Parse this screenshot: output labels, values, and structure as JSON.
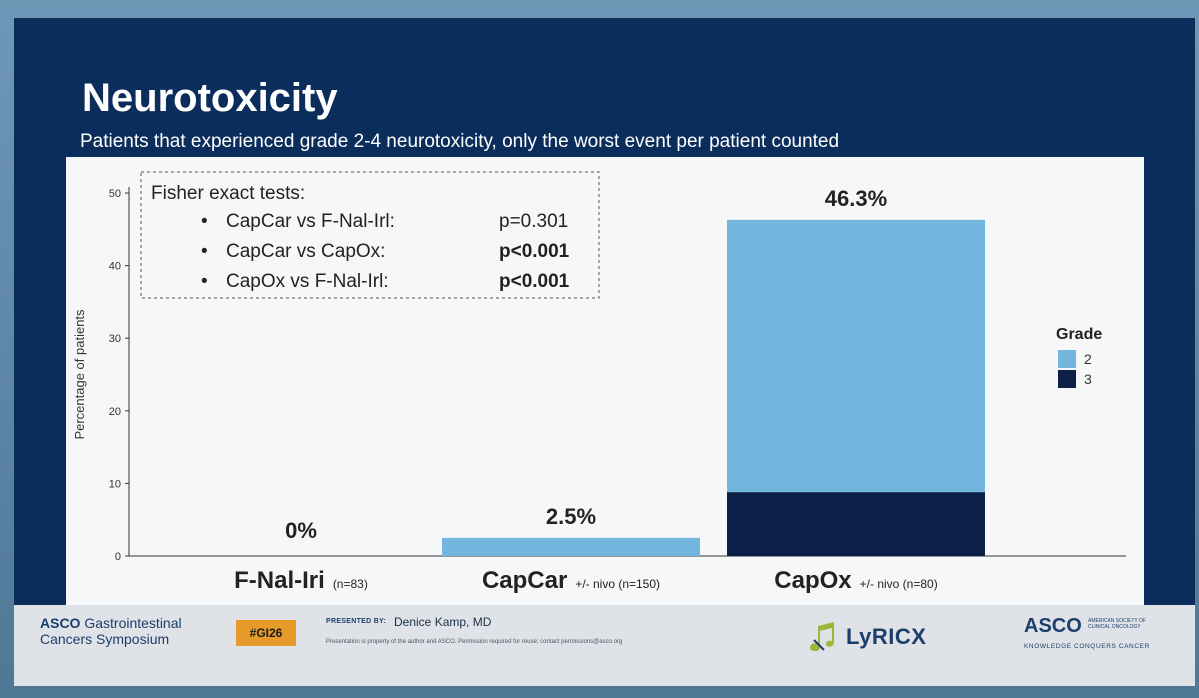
{
  "slide": {
    "title": "Neurotoxicity",
    "subtitle": "Patients that experienced grade 2-4 neurotoxicity, only the worst event per patient counted"
  },
  "chart_data": {
    "type": "bar",
    "stacked": true,
    "title": "",
    "ylabel": "Percentage of patients",
    "ylim": [
      0,
      50
    ],
    "yticks": [
      0,
      10,
      20,
      30,
      40,
      50
    ],
    "grid": false,
    "categories": [
      {
        "name": "F-Nal-Iri",
        "note": "(n=83)"
      },
      {
        "name": "CapCar",
        "note": "+/- nivo (n=150)"
      },
      {
        "name": "CapOx",
        "note": "+/- nivo (n=80)"
      }
    ],
    "series": [
      {
        "name": "2",
        "color": "#72b6dd",
        "values": [
          0,
          2.5,
          37.5
        ]
      },
      {
        "name": "3",
        "color": "#0c1f46",
        "values": [
          0,
          0,
          8.8
        ]
      }
    ],
    "bar_labels": [
      "0%",
      "2.5%",
      "46.3%"
    ],
    "legend": {
      "title": "Grade",
      "position": "right"
    },
    "annotation": {
      "heading": "Fisher exact tests:",
      "rows": [
        {
          "comparison": "CapCar  vs F-Nal-Irl:",
          "p": "p=0.301",
          "bold": false
        },
        {
          "comparison": "CapCar  vs CapOx:",
          "p": "p<0.001",
          "bold": true
        },
        {
          "comparison": "CapOx   vs F-Nal-Irl:",
          "p": "p<0.001",
          "bold": true
        }
      ]
    }
  },
  "footer": {
    "asco_gi_line1_brand": "ASCO",
    "asco_gi_line1_rest": " Gastrointestinal",
    "asco_gi_line2": "Cancers Symposium",
    "hashtag": "#GI26",
    "presented_by": "PRESENTED BY:",
    "presenter": "Denice Kamp, MD",
    "disclaimer": "Presentation is property of the author and ASCO. Permission required for reuse; contact permissions@asco.org",
    "lyricx": "LyRICX",
    "asco_logo": "ASCO",
    "asco_society": "AMERICAN SOCIETY OF CLINICAL ONCOLOGY",
    "asco_tagline": "KNOWLEDGE CONQUERS CANCER"
  }
}
